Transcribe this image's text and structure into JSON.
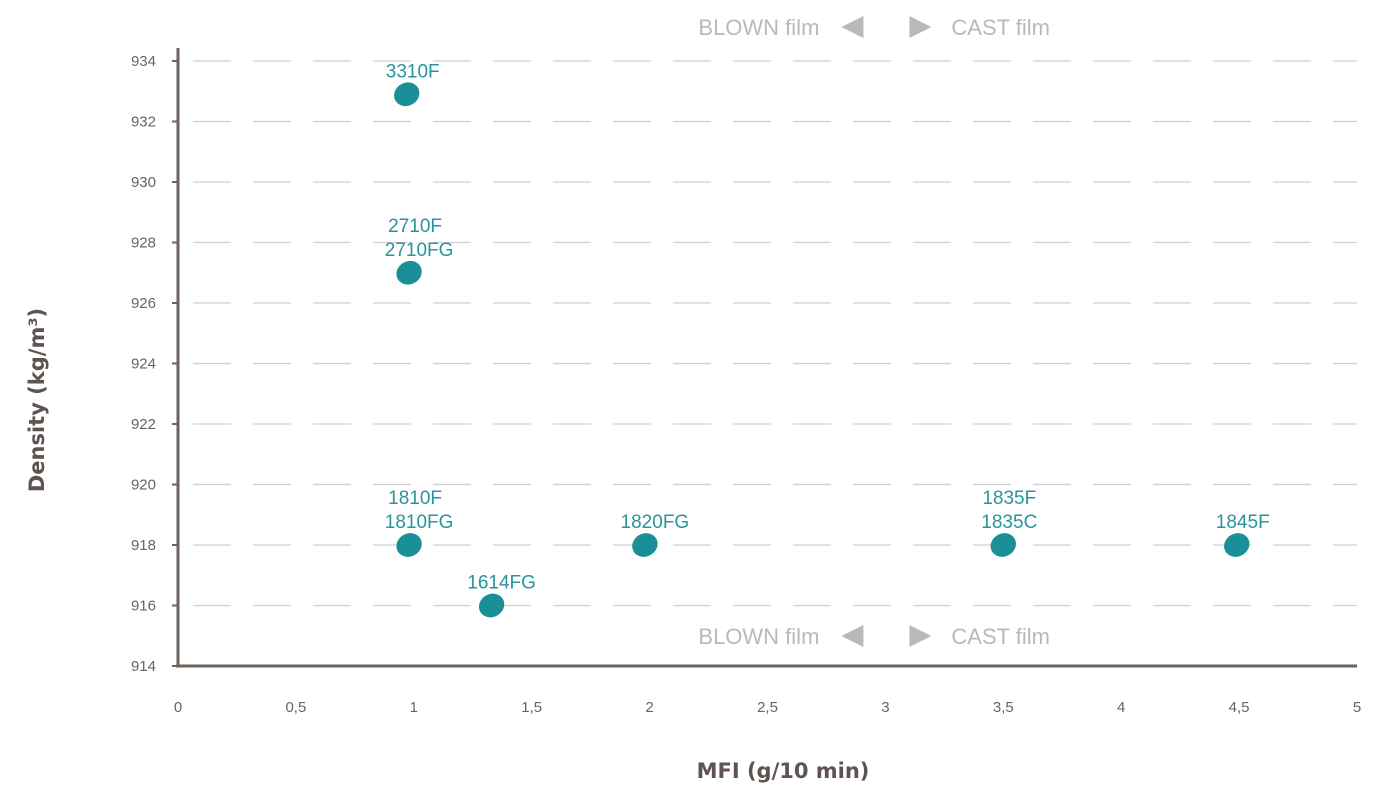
{
  "chart_data": {
    "type": "scatter",
    "title": "",
    "xlabel": "MFI (g/10 min)",
    "ylabel": "Density (kg/m³)",
    "xlim": [
      0,
      5
    ],
    "ylim": [
      914,
      934
    ],
    "x_ticks": [
      0,
      0.5,
      1,
      1.5,
      2,
      2.5,
      3,
      3.5,
      4,
      4.5,
      5
    ],
    "x_tick_labels": [
      "0",
      "0,5",
      "1",
      "1,5",
      "2",
      "2,5",
      "3",
      "3,5",
      "4",
      "4,5",
      "5"
    ],
    "y_ticks": [
      914,
      916,
      918,
      920,
      922,
      924,
      926,
      928,
      930,
      932,
      934
    ],
    "grid": true,
    "divider_x": 3,
    "regions": {
      "left_label": "BLOWN film",
      "right_label": "CAST film"
    },
    "points": [
      {
        "x": 0.97,
        "y": 932.9,
        "labels": [
          "3310F"
        ]
      },
      {
        "x": 0.98,
        "y": 927.0,
        "labels": [
          "2710F",
          "2710FG"
        ]
      },
      {
        "x": 0.98,
        "y": 918.0,
        "labels": [
          "1810F",
          "1810FG"
        ]
      },
      {
        "x": 1.33,
        "y": 916.0,
        "labels": [
          "1614FG"
        ]
      },
      {
        "x": 1.98,
        "y": 918.0,
        "labels": [
          "1820FG"
        ]
      },
      {
        "x": 3.5,
        "y": 918.0,
        "labels": [
          "1835F",
          "1835C"
        ]
      },
      {
        "x": 4.49,
        "y": 918.0,
        "labels": [
          "1845F"
        ]
      }
    ],
    "colors": {
      "point": "#1a8f98",
      "point_label": "#2b939b",
      "axis": "#6f635d",
      "grid": "#d0d0d0",
      "divider": "#e8a640",
      "region_label": "#b9b9b9"
    }
  }
}
